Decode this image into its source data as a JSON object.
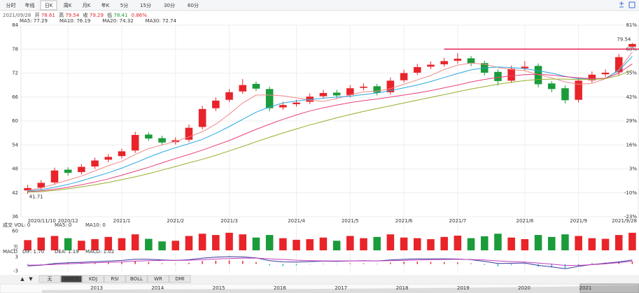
{
  "toolbar": {
    "tabs": [
      "分时",
      "年线",
      "日K",
      "周K",
      "月K",
      "年K",
      "5分",
      "15分",
      "30分",
      "60分"
    ],
    "active": 2
  },
  "quote": {
    "date": "2021/09/28",
    "open_label": "开",
    "open": 78.61,
    "high_label": "高",
    "high": 79.54,
    "close_label": "收",
    "close": 79.29,
    "low_label": "低",
    "low": 78.41,
    "change": "0.86%"
  },
  "chart_data": [
    {
      "type": "candlestick",
      "categories": [
        "2020/11/10",
        null,
        null,
        "2020/12",
        null,
        null,
        null,
        "2021/1",
        null,
        null,
        null,
        "2021/2",
        null,
        null,
        null,
        "2021/3",
        null,
        null,
        null,
        null,
        "2021/4",
        null,
        null,
        null,
        "2021/5",
        null,
        null,
        null,
        "2021/6",
        null,
        null,
        null,
        "2021/7",
        null,
        null,
        null,
        null,
        "2021/8",
        null,
        null,
        null,
        "2021/9",
        null,
        null,
        null,
        "2021/9/28"
      ],
      "open": [
        42.6,
        43.3,
        44.6,
        47.8,
        47.2,
        48.6,
        50.3,
        51.2,
        52.6,
        56.6,
        55.7,
        54.7,
        55.3,
        58.5,
        63.2,
        65.3,
        67.4,
        69.3,
        68.0,
        63.4,
        64.2,
        64.8,
        66.2,
        67.1,
        66.5,
        68.3,
        68.7,
        67.2,
        70.2,
        72.1,
        73.6,
        74.2,
        75.1,
        75.7,
        74.5,
        72.3,
        70.1,
        73.2,
        73.8,
        69.4,
        68.2,
        65.3,
        70.2,
        71.7,
        72.2,
        78.61
      ],
      "close": [
        43.2,
        44.5,
        47.6,
        47.0,
        48.5,
        50.1,
        51.0,
        52.4,
        56.5,
        55.6,
        54.6,
        55.2,
        58.3,
        63.0,
        65.1,
        67.2,
        69.0,
        68.1,
        63.2,
        64.0,
        64.6,
        66.1,
        67.0,
        66.4,
        68.2,
        68.6,
        67.1,
        70.1,
        72.0,
        73.5,
        74.1,
        75.0,
        75.6,
        74.4,
        72.1,
        70.0,
        73.1,
        73.6,
        69.2,
        68.0,
        65.2,
        70.1,
        71.6,
        72.1,
        76.0,
        79.29
      ],
      "high": [
        44.0,
        45.2,
        48.3,
        48.4,
        49.2,
        50.8,
        51.7,
        53.1,
        57.3,
        57.2,
        56.3,
        55.9,
        59.1,
        63.8,
        65.9,
        68.0,
        70.5,
        69.9,
        68.6,
        64.8,
        65.3,
        66.9,
        67.8,
        67.8,
        69.0,
        69.4,
        69.3,
        70.9,
        72.8,
        74.3,
        74.9,
        75.8,
        77.0,
        76.3,
        75.1,
        72.9,
        73.9,
        75.0,
        74.4,
        70.0,
        68.9,
        70.9,
        72.4,
        72.9,
        76.8,
        79.54
      ],
      "low": [
        41.71,
        42.7,
        44.0,
        46.3,
        46.6,
        48.0,
        49.7,
        50.6,
        52.0,
        55.0,
        54.0,
        54.1,
        54.7,
        57.9,
        62.5,
        64.7,
        66.8,
        67.5,
        62.4,
        62.8,
        63.6,
        64.2,
        65.6,
        65.7,
        65.9,
        67.7,
        66.4,
        66.6,
        69.6,
        71.5,
        73.0,
        73.6,
        74.4,
        73.7,
        71.4,
        68.9,
        69.5,
        72.5,
        68.4,
        67.2,
        64.4,
        64.6,
        69.6,
        71.0,
        71.5,
        78.41
      ],
      "up_color": "#e8242a",
      "down_color": "#1a9c3a",
      "ylim": [
        36,
        84
      ],
      "yticks": [
        36,
        42,
        48,
        54,
        60,
        66,
        72,
        78,
        84
      ],
      "y2lim": [
        -22.6,
        80.6
      ],
      "y2ticks": [
        {
          "value": -22.6,
          "label": "-23%"
        },
        {
          "value": -9.7,
          "label": "-10%"
        },
        {
          "value": 3.2,
          "label": "3%"
        },
        {
          "value": 16.1,
          "label": "16%"
        },
        {
          "value": 29.0,
          "label": "29%"
        },
        {
          "value": 41.9,
          "label": "42%"
        },
        {
          "value": 54.8,
          "label": "55%"
        },
        {
          "value": 67.7,
          "label": "68%"
        },
        {
          "value": 80.6,
          "label": "81%"
        }
      ],
      "series": [
        {
          "name": "MA5: 77.29",
          "color": "#f08a8a",
          "values": [
            42.6,
            43.2,
            44.2,
            45.2,
            46.2,
            47.5,
            48.8,
            49.9,
            51.6,
            53.1,
            54.0,
            54.9,
            56.0,
            57.3,
            59.2,
            61.7,
            64.5,
            66.5,
            66.5,
            66.3,
            65.8,
            65.2,
            64.9,
            65.6,
            66.5,
            67.3,
            67.5,
            68.1,
            69.2,
            70.3,
            71.4,
            72.9,
            74.0,
            74.5,
            74.2,
            73.4,
            72.9,
            72.6,
            71.6,
            70.8,
            69.8,
            69.2,
            69.4,
            70.6,
            72.8,
            77.29
          ]
        },
        {
          "name": "MA10: 76.19",
          "color": "#2aa9e0",
          "values": [
            42.5,
            42.8,
            43.4,
            44.1,
            45.0,
            46.0,
            47.0,
            48.2,
            49.5,
            50.9,
            52.2,
            53.3,
            54.3,
            55.4,
            56.9,
            58.6,
            60.4,
            62.2,
            63.5,
            64.5,
            65.0,
            65.4,
            65.7,
            66.0,
            66.2,
            66.6,
            67.0,
            67.6,
            68.3,
            69.0,
            69.9,
            70.9,
            71.9,
            72.8,
            73.3,
            73.5,
            73.4,
            73.1,
            72.6,
            72.0,
            71.2,
            70.6,
            70.4,
            70.7,
            72.6,
            76.19
          ]
        },
        {
          "name": "MA20: 74.32",
          "color": "#e8407a",
          "values": [
            42.3,
            42.5,
            42.9,
            43.4,
            44.0,
            44.7,
            45.5,
            46.4,
            47.4,
            48.4,
            49.5,
            50.6,
            51.6,
            52.7,
            53.9,
            55.1,
            56.5,
            57.9,
            59.2,
            60.4,
            61.5,
            62.5,
            63.3,
            64.0,
            64.6,
            65.1,
            65.5,
            66.0,
            66.5,
            67.0,
            67.6,
            68.3,
            69.0,
            69.8,
            70.4,
            70.9,
            71.3,
            71.6,
            71.7,
            71.5,
            71.1,
            70.8,
            70.6,
            70.7,
            72.0,
            74.32
          ]
        },
        {
          "name": "MA30: 72.74",
          "color": "#9aad2a",
          "values": [
            42.2,
            42.3,
            42.6,
            43.0,
            43.5,
            44.0,
            44.6,
            45.3,
            46.0,
            46.8,
            47.7,
            48.6,
            49.5,
            50.4,
            51.4,
            52.5,
            53.6,
            54.8,
            55.9,
            57.0,
            58.0,
            59.0,
            59.9,
            60.8,
            61.6,
            62.4,
            63.1,
            63.8,
            64.5,
            65.2,
            65.9,
            66.6,
            67.3,
            68.0,
            68.6,
            69.2,
            69.7,
            70.1,
            70.4,
            70.5,
            70.5,
            70.4,
            70.4,
            70.6,
            71.4,
            72.74
          ]
        }
      ],
      "hline": {
        "value": 78,
        "color": "#e8245a"
      },
      "grid": true
    },
    {
      "type": "volume",
      "legend": [
        "成交 VOL: 0",
        "MA5: 0",
        "MA10: 0"
      ],
      "unit": "万",
      "values": [
        32,
        40,
        45,
        38,
        30,
        35,
        42,
        38,
        50,
        36,
        28,
        30,
        45,
        52,
        48,
        55,
        50,
        40,
        48,
        38,
        33,
        35,
        40,
        30,
        45,
        38,
        42,
        50,
        40,
        38,
        35,
        42,
        46,
        38,
        44,
        52,
        40,
        35,
        48,
        42,
        50,
        45,
        38,
        36,
        48,
        55
      ],
      "ylim": [
        0,
        70
      ],
      "yticks": [
        60
      ]
    },
    {
      "type": "macd",
      "legend": [
        "MACD",
        "DIF: 1.70",
        "DEA: 1.19",
        "MACD: 1.02"
      ],
      "hist": [
        -0.5,
        -0.2,
        0.4,
        0.6,
        0.5,
        0.6,
        0.7,
        0.8,
        1.2,
        0.8,
        0.3,
        0.1,
        0.5,
        1.2,
        1.4,
        1.5,
        1.3,
        0.8,
        -0.6,
        -0.9,
        -0.6,
        -0.2,
        0.1,
        -0.1,
        0.3,
        0.3,
        0,
        0.6,
        0.9,
        1.0,
        0.9,
        0.8,
        0.7,
        0.3,
        -0.4,
        -1.0,
        -0.5,
        -0.2,
        -1.2,
        -1.5,
        -1.8,
        -0.6,
        0.3,
        0.6,
        1.0,
        1.02
      ],
      "dif": [
        -0.8,
        -0.5,
        0.2,
        0.5,
        0.7,
        1.0,
        1.2,
        1.5,
        2.0,
        2.0,
        1.7,
        1.5,
        1.8,
        2.5,
        2.9,
        3.1,
        3.0,
        2.6,
        1.4,
        0.9,
        0.8,
        1.0,
        1.2,
        1.1,
        1.3,
        1.4,
        1.3,
        1.7,
        2.0,
        2.2,
        2.2,
        2.2,
        2.1,
        1.8,
        1.1,
        0.2,
        0.3,
        0.4,
        -0.6,
        -1.2,
        -2.0,
        -1.0,
        -0.2,
        0.3,
        0.9,
        1.7
      ],
      "dea": [
        -0.5,
        -0.4,
        -0.2,
        0.1,
        0.3,
        0.5,
        0.7,
        0.9,
        1.2,
        1.4,
        1.5,
        1.5,
        1.6,
        1.8,
        2.1,
        2.3,
        2.5,
        2.5,
        2.2,
        1.9,
        1.6,
        1.4,
        1.3,
        1.3,
        1.3,
        1.3,
        1.3,
        1.4,
        1.5,
        1.7,
        1.8,
        1.9,
        2.0,
        1.9,
        1.7,
        1.3,
        1.0,
        0.8,
        0.4,
        -0.1,
        -0.6,
        -0.6,
        -0.3,
        0.1,
        0.6,
        1.19
      ],
      "dif_color": "#3a3a9a",
      "dea_color": "#c040c0",
      "pos_color": "#e8242a",
      "neg_color": "#2ab5c0",
      "ylim": [
        -4,
        4
      ],
      "yticks": [
        3,
        -3
      ]
    }
  ],
  "indicator_tabs": {
    "arrows": [
      "▲",
      "▼"
    ],
    "tabs": [
      "无",
      "MACD",
      "KDJ",
      "RSI",
      "BOLL",
      "WR",
      "DMI"
    ],
    "active": 1
  },
  "timeline": {
    "years": [
      "2013",
      "2014",
      "2015",
      "2016",
      "2017",
      "2018",
      "2019",
      "2020",
      "2021"
    ]
  }
}
